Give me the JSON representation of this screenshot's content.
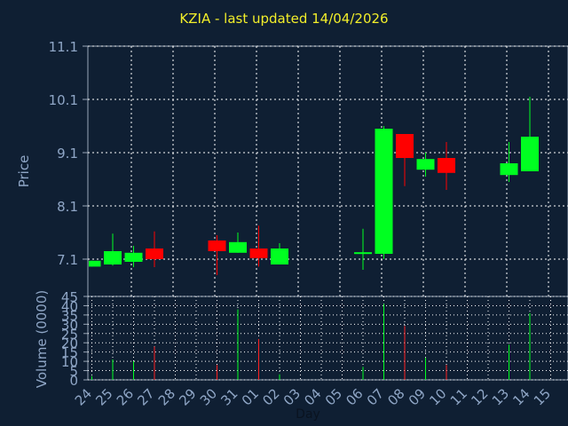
{
  "chart_data": [
    {
      "type": "candlestick",
      "title": "KZIA - last updated 14/04/2026",
      "ylabel": "Price",
      "ylim": [
        6.4,
        11.1
      ],
      "yticks": [
        "11.1",
        "10.1",
        "9.1",
        "8.1",
        "7.1"
      ],
      "grid": true,
      "up_color": "#00ff21",
      "down_color": "#ff0000",
      "x_index": [
        "24",
        "25",
        "26",
        "27",
        "28",
        "29",
        "30",
        "31",
        "01",
        "02",
        "03",
        "04",
        "05",
        "06",
        "07",
        "08",
        "09",
        "10",
        "11",
        "12",
        "13",
        "14",
        "15"
      ],
      "ohlc": [
        {
          "day": "24",
          "open": 6.96,
          "high": 7.07,
          "low": 6.96,
          "close": 7.07
        },
        {
          "day": "25",
          "open": 7.0,
          "high": 7.58,
          "low": 6.98,
          "close": 7.25
        },
        {
          "day": "26",
          "open": 7.05,
          "high": 7.35,
          "low": 6.95,
          "close": 7.22
        },
        {
          "day": "27",
          "open": 7.3,
          "high": 7.62,
          "low": 6.95,
          "close": 7.1
        },
        {
          "day": "30",
          "open": 7.45,
          "high": 7.55,
          "low": 6.8,
          "close": 7.25
        },
        {
          "day": "31",
          "open": 7.22,
          "high": 7.6,
          "low": 7.22,
          "close": 7.42
        },
        {
          "day": "01",
          "open": 7.3,
          "high": 7.73,
          "low": 6.96,
          "close": 7.12
        },
        {
          "day": "02",
          "open": 7.0,
          "high": 7.4,
          "low": 7.0,
          "close": 7.3
        },
        {
          "day": "06",
          "open": 7.22,
          "high": 7.67,
          "low": 6.9,
          "close": 7.23
        },
        {
          "day": "07",
          "open": 7.2,
          "high": 9.6,
          "low": 7.1,
          "close": 9.55
        },
        {
          "day": "08",
          "open": 9.45,
          "high": 9.45,
          "low": 8.47,
          "close": 9.0
        },
        {
          "day": "09",
          "open": 8.78,
          "high": 9.1,
          "low": 8.65,
          "close": 8.98
        },
        {
          "day": "10",
          "open": 9.0,
          "high": 9.3,
          "low": 8.4,
          "close": 8.72
        },
        {
          "day": "13",
          "open": 8.68,
          "high": 9.3,
          "low": 8.55,
          "close": 8.9
        },
        {
          "day": "14",
          "open": 8.75,
          "high": 10.15,
          "low": 8.75,
          "close": 9.4
        }
      ]
    },
    {
      "type": "bar",
      "ylabel": "Volume (0000)",
      "xlabel": "Day",
      "ylim": [
        0,
        45
      ],
      "yticks": [
        "45",
        "40",
        "35",
        "30",
        "25",
        "20",
        "15",
        "10",
        "5",
        "0"
      ],
      "grid": true,
      "categories": [
        "24",
        "25",
        "26",
        "27",
        "28",
        "29",
        "30",
        "31",
        "01",
        "02",
        "03",
        "04",
        "05",
        "06",
        "07",
        "08",
        "09",
        "10",
        "11",
        "12",
        "13",
        "14",
        "15"
      ],
      "values": [
        2,
        11,
        10,
        18,
        0,
        0,
        8,
        38,
        22,
        3,
        0,
        0,
        0,
        7,
        41,
        29,
        12,
        8,
        0,
        0,
        19,
        36,
        0
      ],
      "direction": [
        "up",
        "up",
        "up",
        "down",
        "",
        "",
        "down",
        "up",
        "down",
        "up",
        "",
        "",
        "",
        "up",
        "up",
        "down",
        "up",
        "down",
        "",
        "",
        "up",
        "up",
        ""
      ]
    }
  ]
}
